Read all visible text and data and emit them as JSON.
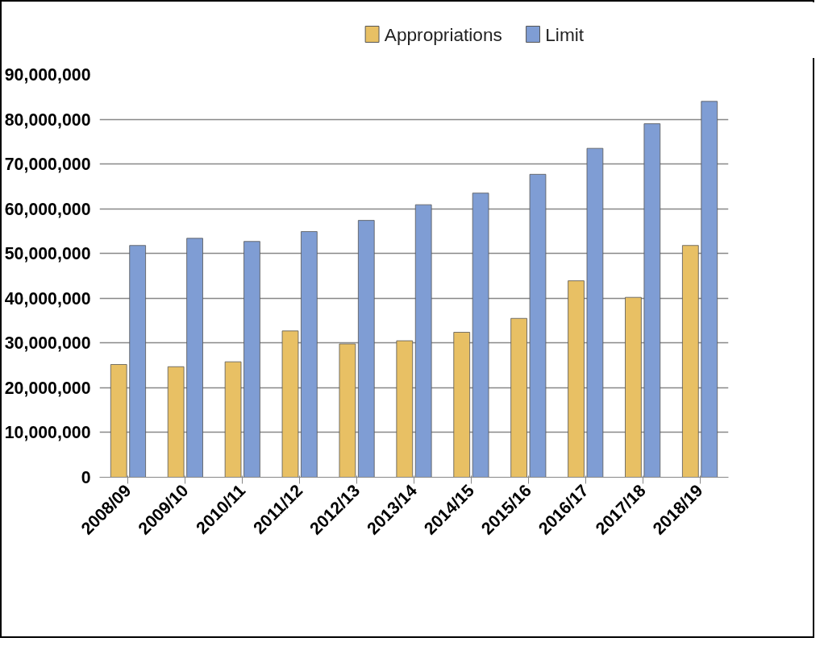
{
  "chart_data": {
    "type": "bar",
    "categories": [
      "2008/09",
      "2009/10",
      "2010/11",
      "2011/12",
      "2012/13",
      "2013/14",
      "2014/15",
      "2015/16",
      "2016/17",
      "2017/18",
      "2018/19"
    ],
    "series": [
      {
        "name": "Appropriations",
        "color": "#e8c064",
        "values": [
          25200000,
          24700000,
          25800000,
          32700000,
          29800000,
          30500000,
          32400000,
          35500000,
          43900000,
          40200000,
          51800000
        ]
      },
      {
        "name": "Limit",
        "color": "#7f9dd4",
        "values": [
          51800000,
          53400000,
          52700000,
          54900000,
          57400000,
          60900000,
          63500000,
          67700000,
          73500000,
          79000000,
          84000000
        ]
      }
    ],
    "ylim": [
      0,
      90000000
    ],
    "yticks": [
      {
        "value": 0,
        "label": "0"
      },
      {
        "value": 10000000,
        "label": "10,000,000"
      },
      {
        "value": 20000000,
        "label": "20,000,000"
      },
      {
        "value": 30000000,
        "label": "30,000,000"
      },
      {
        "value": 40000000,
        "label": "40,000,000"
      },
      {
        "value": 50000000,
        "label": "50,000,000"
      },
      {
        "value": 60000000,
        "label": "60,000,000"
      },
      {
        "value": 70000000,
        "label": "70,000,000"
      },
      {
        "value": 80000000,
        "label": "80,000,000"
      },
      {
        "value": 90000000,
        "label": "90,000,000"
      }
    ],
    "grid": "y",
    "legend": "top"
  }
}
